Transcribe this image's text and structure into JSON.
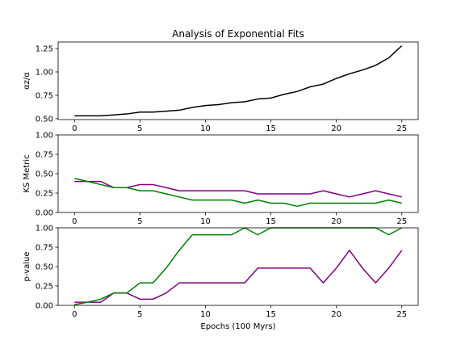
{
  "chart_data": [
    {
      "type": "line",
      "title": "Analysis of Exponential Fits",
      "xlabel": "",
      "ylabel": "αz/α",
      "xlim": [
        -1.25,
        26.25
      ],
      "ylim": [
        0.49,
        1.32
      ],
      "xticks": [
        "0",
        "5",
        "10",
        "15",
        "20",
        "25"
      ],
      "yticks": [
        "0.50",
        "0.75",
        "1.00",
        "1.25"
      ],
      "series": [
        {
          "color": "#000000",
          "x": [
            0,
            1,
            2,
            3,
            4,
            5,
            6,
            7,
            8,
            9,
            10,
            11,
            12,
            13,
            14,
            15,
            16,
            17,
            18,
            19,
            20,
            21,
            22,
            23,
            24,
            25
          ],
          "y": [
            0.53,
            0.53,
            0.53,
            0.54,
            0.55,
            0.57,
            0.57,
            0.58,
            0.59,
            0.62,
            0.64,
            0.65,
            0.67,
            0.68,
            0.71,
            0.72,
            0.76,
            0.79,
            0.84,
            0.87,
            0.93,
            0.98,
            1.02,
            1.07,
            1.15,
            1.28
          ]
        }
      ]
    },
    {
      "type": "line",
      "xlabel": "",
      "ylabel": "KS Metric",
      "xlim": [
        -1.25,
        26.25
      ],
      "ylim": [
        0.0,
        1.0
      ],
      "xticks": [
        "0",
        "5",
        "10",
        "15",
        "20",
        "25"
      ],
      "yticks": [
        "0.00",
        "0.25",
        "0.50",
        "0.75",
        "1.00"
      ],
      "series": [
        {
          "color": "#800080",
          "x": [
            0,
            1,
            2,
            3,
            4,
            5,
            6,
            7,
            8,
            9,
            10,
            11,
            12,
            13,
            14,
            15,
            16,
            17,
            18,
            19,
            20,
            21,
            22,
            23,
            24,
            25
          ],
          "y": [
            0.4,
            0.4,
            0.4,
            0.32,
            0.32,
            0.36,
            0.36,
            0.32,
            0.28,
            0.28,
            0.28,
            0.28,
            0.28,
            0.28,
            0.24,
            0.24,
            0.24,
            0.24,
            0.24,
            0.28,
            0.24,
            0.2,
            0.24,
            0.28,
            0.24,
            0.2
          ]
        },
        {
          "color": "#008000",
          "x": [
            0,
            1,
            2,
            3,
            4,
            5,
            6,
            7,
            8,
            9,
            10,
            11,
            12,
            13,
            14,
            15,
            16,
            17,
            18,
            19,
            20,
            21,
            22,
            23,
            24,
            25
          ],
          "y": [
            0.44,
            0.4,
            0.36,
            0.32,
            0.32,
            0.28,
            0.28,
            0.24,
            0.2,
            0.16,
            0.16,
            0.16,
            0.16,
            0.12,
            0.16,
            0.12,
            0.12,
            0.08,
            0.12,
            0.12,
            0.12,
            0.12,
            0.12,
            0.12,
            0.16,
            0.12
          ]
        }
      ]
    },
    {
      "type": "line",
      "xlabel": "Epochs (100 Myrs)",
      "ylabel": "p-value",
      "xlim": [
        -1.25,
        26.25
      ],
      "ylim": [
        0.0,
        1.0
      ],
      "xticks": [
        "0",
        "5",
        "10",
        "15",
        "20",
        "25"
      ],
      "yticks": [
        "0.00",
        "0.25",
        "0.50",
        "0.75",
        "1.00"
      ],
      "series": [
        {
          "color": "#800080",
          "x": [
            0,
            1,
            2,
            3,
            4,
            5,
            6,
            7,
            8,
            9,
            10,
            11,
            12,
            13,
            14,
            15,
            16,
            17,
            18,
            19,
            20,
            21,
            22,
            23,
            24,
            25
          ],
          "y": [
            0.04,
            0.04,
            0.04,
            0.16,
            0.16,
            0.08,
            0.08,
            0.16,
            0.29,
            0.29,
            0.29,
            0.29,
            0.29,
            0.29,
            0.48,
            0.48,
            0.48,
            0.48,
            0.48,
            0.29,
            0.48,
            0.71,
            0.48,
            0.29,
            0.48,
            0.71
          ]
        },
        {
          "color": "#008000",
          "x": [
            0,
            1,
            2,
            3,
            4,
            5,
            6,
            7,
            8,
            9,
            10,
            11,
            12,
            13,
            14,
            15,
            16,
            17,
            18,
            19,
            20,
            21,
            22,
            23,
            24,
            25
          ],
          "y": [
            0.01,
            0.04,
            0.08,
            0.16,
            0.16,
            0.29,
            0.29,
            0.48,
            0.71,
            0.91,
            0.91,
            0.91,
            0.91,
            1.0,
            0.91,
            1.0,
            1.0,
            1.0,
            1.0,
            1.0,
            1.0,
            1.0,
            1.0,
            1.0,
            0.91,
            1.0
          ]
        }
      ]
    }
  ]
}
